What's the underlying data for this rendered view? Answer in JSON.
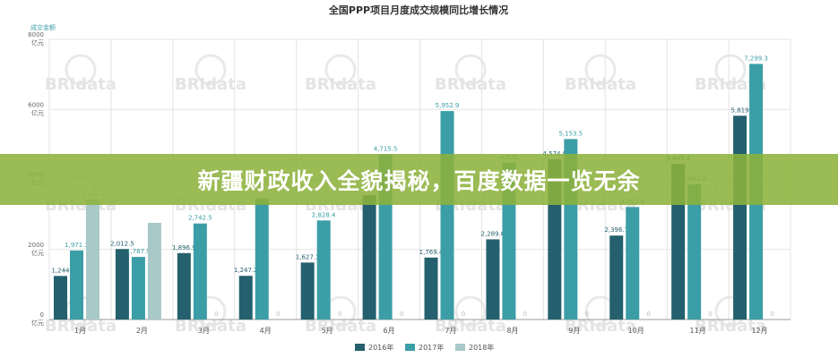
{
  "chart_data": {
    "type": "bar",
    "title": "全国PPP项目月度成交规模同比增长情况",
    "ylabel": "成交金额",
    "y_unit": "亿元",
    "ylim": [
      0,
      8000
    ],
    "yticks": [
      0,
      2000,
      4000,
      6000,
      8000
    ],
    "categories": [
      "1月",
      "2月",
      "3月",
      "4月",
      "5月",
      "6月",
      "7月",
      "8月",
      "9月",
      "10月",
      "11月",
      "12月"
    ],
    "series": [
      {
        "name": "2016年",
        "color": "#24606d",
        "values": [
          1244,
          2012.5,
          1896.9,
          1247.2,
          1627.1,
          3550,
          1769.4,
          2289.6,
          4574.9,
          2396.7,
          4445.4,
          5819
        ]
      },
      {
        "name": "2017年",
        "color": "#3b9ea6",
        "values": [
          1971.3,
          1787.9,
          2742.5,
          3460,
          2828.4,
          4715.5,
          5952.9,
          4476,
          5153.5,
          3212.4,
          3862.4,
          7299.3
        ]
      },
      {
        "name": "2018年",
        "color": "#a9c8c8",
        "values": [
          3424.1,
          2760,
          null,
          null,
          null,
          null,
          null,
          null,
          null,
          null,
          null,
          null
        ]
      }
    ],
    "data_labels": [
      [
        "1,244",
        "2,012.5",
        "1,896.9",
        "1,247.2",
        "1,627.1",
        "",
        "1,769.4",
        "2,289.6",
        "4,574.9",
        "2,396.7",
        "4,445.4",
        "5,819"
      ],
      [
        "1,971.3",
        "1,787.9",
        "2,742.5",
        "",
        "2,828.4",
        "4,715.5",
        "5,952.9",
        "4,476",
        "5,153.5",
        "3,212.4",
        "3,862.4",
        "7,299.3"
      ],
      [
        "3,424.1",
        "",
        "0",
        "0",
        "0",
        "0",
        "0",
        "0",
        "0",
        "0",
        "0",
        "0"
      ]
    ],
    "legend_position": "bottom",
    "grid": true,
    "watermark": "BRIdata"
  },
  "banner": {
    "text": "新疆财政收入全貌揭秘，百度数据一览无余",
    "color": "#8db23c"
  }
}
